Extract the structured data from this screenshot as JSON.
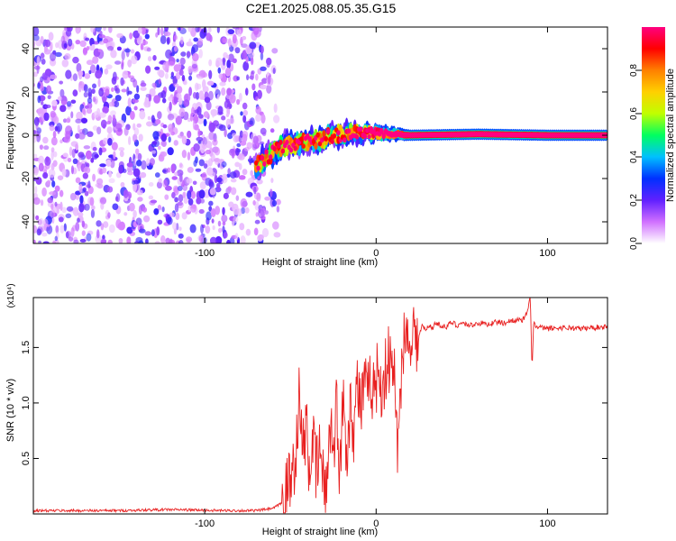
{
  "title": "C2E1.2025.088.05.35.G15",
  "chart_data": [
    {
      "type": "heatmap",
      "xlabel": "Height of straight line (km)",
      "ylabel": "Frequency (Hz)",
      "xlim": [
        -200,
        135
      ],
      "ylim": [
        -50,
        50
      ],
      "xticks": [
        -100,
        0,
        100
      ],
      "yticks": [
        -40,
        -20,
        0,
        20,
        40
      ],
      "noise_region_x": [
        -200,
        -65
      ],
      "signal_track": [
        {
          "x": -70,
          "y": -14
        },
        {
          "x": -62,
          "y": -9
        },
        {
          "x": -55,
          "y": -5
        },
        {
          "x": -48,
          "y": -4
        },
        {
          "x": -40,
          "y": -3
        },
        {
          "x": -32,
          "y": -2
        },
        {
          "x": -25,
          "y": 0
        },
        {
          "x": -15,
          "y": 1
        },
        {
          "x": 0,
          "y": 1
        },
        {
          "x": 20,
          "y": 0
        },
        {
          "x": 60,
          "y": 0.5
        },
        {
          "x": 100,
          "y": 0
        },
        {
          "x": 135,
          "y": 0
        }
      ],
      "colorbar": {
        "label": "Normalized spectral amplitude",
        "range": [
          0,
          1
        ],
        "ticks": [
          "0.0",
          "0.2",
          "0.4",
          "0.6",
          "0.8"
        ],
        "tick_values": [
          0,
          0.2,
          0.4,
          0.6,
          0.8
        ],
        "colors": [
          "#ffffff",
          "#d070ff",
          "#6020ff",
          "#0030ff",
          "#00c0ff",
          "#00ff60",
          "#c0ff00",
          "#ffd000",
          "#ff8000",
          "#ff0000",
          "#ff0080"
        ]
      }
    },
    {
      "type": "line",
      "xlabel": "Height of straight line (km)",
      "ylabel": "SNR (10 * v/v)",
      "y_multiplier": "(x10⁴)",
      "xlim": [
        -200,
        135
      ],
      "ylim": [
        0,
        1.95
      ],
      "xticks": [
        -100,
        0,
        100
      ],
      "yticks": [
        "0.5",
        "1.0",
        "1.5"
      ],
      "ytick_values": [
        0.5,
        1.0,
        1.5
      ],
      "series": [
        {
          "color": "#e82020",
          "x": [
            -200,
            -150,
            -120,
            -90,
            -70,
            -60,
            -55,
            -50,
            -47,
            -45,
            -43,
            -41,
            -39,
            -37,
            -35,
            -33,
            -31,
            -29,
            -27,
            -25,
            -23,
            -21,
            -19,
            -17,
            -15,
            -13,
            -11,
            -9,
            -7,
            -5,
            -3,
            -1,
            1,
            3,
            5,
            7,
            9,
            11,
            13,
            15,
            17,
            19,
            21,
            23,
            25,
            27,
            29,
            31,
            33,
            35,
            38,
            41,
            44,
            47,
            50,
            55,
            60,
            65,
            70,
            75,
            80,
            85,
            88,
            90,
            91,
            92,
            93,
            95,
            100,
            110,
            120,
            135
          ],
          "y": [
            0.03,
            0.03,
            0.04,
            0.03,
            0.03,
            0.05,
            0.1,
            0.3,
            0.55,
            1.05,
            0.55,
            0.8,
            0.4,
            0.7,
            0.35,
            0.6,
            0.3,
            0.2,
            0.9,
            0.55,
            1.0,
            0.3,
            1.15,
            0.5,
            1.05,
            0.75,
            1.2,
            0.95,
            1.15,
            1.05,
            1.2,
            1.1,
            1.3,
            1.15,
            1.25,
            1.4,
            1.3,
            1.2,
            0.45,
            1.5,
            1.65,
            1.5,
            1.75,
            1.55,
            1.6,
            1.7,
            1.65,
            1.7,
            1.68,
            1.72,
            1.7,
            1.68,
            1.73,
            1.7,
            1.72,
            1.7,
            1.72,
            1.71,
            1.73,
            1.72,
            1.75,
            1.74,
            1.8,
            1.95,
            1.3,
            1.75,
            1.68,
            1.68,
            1.67,
            1.68,
            1.67,
            1.69
          ]
        }
      ]
    }
  ]
}
